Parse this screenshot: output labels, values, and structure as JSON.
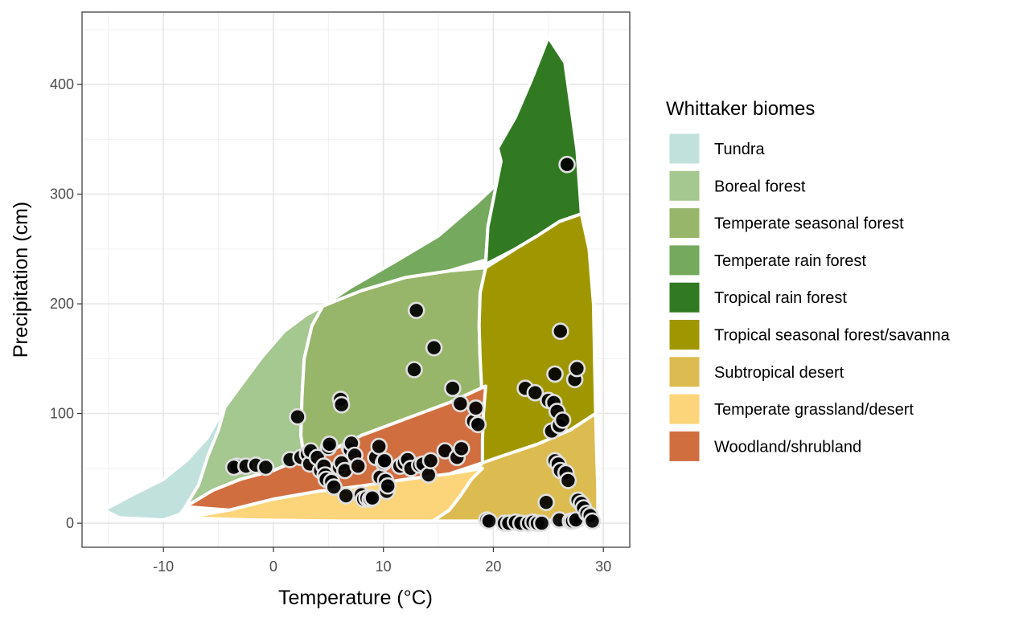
{
  "chart_data": {
    "type": "scatter",
    "xlabel": "Temperature (°C)",
    "ylabel": "Precipitation (cm)",
    "xlim": [
      -17.4,
      32.4
    ],
    "ylim": [
      -21.9,
      466
    ],
    "x_ticks": [
      -10,
      0,
      10,
      20,
      30
    ],
    "y_ticks": [
      0,
      100,
      200,
      300,
      400
    ],
    "x_tick_labels": [
      "-10",
      "0",
      "10",
      "20",
      "30"
    ],
    "y_tick_labels": [
      "0",
      "100",
      "200",
      "300",
      "400"
    ],
    "grid": true,
    "legend": {
      "title": "Whittaker biomes",
      "position": "right"
    },
    "biomes": [
      {
        "name": "Tundra",
        "color": "#C1E1DD",
        "polygon": [
          [
            -15.4,
            12
          ],
          [
            -13,
            25
          ],
          [
            -10,
            40
          ],
          [
            -7.8,
            58
          ],
          [
            -6,
            78
          ],
          [
            -4.4,
            106
          ],
          [
            -4.8,
            80
          ],
          [
            -5.6,
            60
          ],
          [
            -6.5,
            40
          ],
          [
            -7.6,
            20
          ],
          [
            -8.5,
            8
          ],
          [
            -10,
            3
          ],
          [
            -14,
            5
          ]
        ]
      },
      {
        "name": "Boreal forest",
        "color": "#A5C790",
        "polygon": [
          [
            -4.4,
            106
          ],
          [
            -3,
            125
          ],
          [
            -1,
            152
          ],
          [
            1,
            175
          ],
          [
            3,
            190
          ],
          [
            4.5,
            198
          ],
          [
            3.5,
            180
          ],
          [
            2.8,
            150
          ],
          [
            2.6,
            115
          ],
          [
            2.5,
            80
          ],
          [
            2.8,
            60
          ],
          [
            0,
            48
          ],
          [
            -3,
            40
          ],
          [
            -5.5,
            30
          ],
          [
            -8,
            15
          ],
          [
            -6.8,
            35
          ],
          [
            -6,
            60
          ],
          [
            -5,
            85
          ]
        ]
      },
      {
        "name": "Temperate seasonal forest",
        "color": "#97B669",
        "polygon": [
          [
            4.5,
            198
          ],
          [
            8,
            212
          ],
          [
            12,
            224
          ],
          [
            16,
            230
          ],
          [
            19.3,
            233
          ],
          [
            18.8,
            210
          ],
          [
            18.7,
            180
          ],
          [
            18.8,
            150
          ],
          [
            19.3,
            125
          ],
          [
            16,
            110
          ],
          [
            12,
            95
          ],
          [
            8,
            80
          ],
          [
            5,
            65
          ],
          [
            2.8,
            60
          ],
          [
            2.5,
            80
          ],
          [
            2.6,
            115
          ],
          [
            2.8,
            150
          ],
          [
            3.5,
            180
          ]
        ]
      },
      {
        "name": "Temperate rain forest",
        "color": "#75A95E",
        "polygon": [
          [
            4.5,
            198
          ],
          [
            7,
            215
          ],
          [
            11,
            238
          ],
          [
            15,
            262
          ],
          [
            18.5,
            292
          ],
          [
            20.4,
            310
          ],
          [
            20.8,
            330
          ],
          [
            20.1,
            300
          ],
          [
            19.5,
            270
          ],
          [
            19.3,
            240
          ],
          [
            16,
            230
          ],
          [
            12,
            224
          ],
          [
            8,
            212
          ]
        ]
      },
      {
        "name": "Tropical rain forest",
        "color": "#317A22",
        "polygon": [
          [
            20.4,
            342
          ],
          [
            22,
            370
          ],
          [
            23.5,
            405
          ],
          [
            25,
            443
          ],
          [
            26.5,
            420
          ],
          [
            27.6,
            340
          ],
          [
            28,
            282
          ],
          [
            26,
            275
          ],
          [
            24,
            262
          ],
          [
            22,
            250
          ],
          [
            19.3,
            236
          ],
          [
            19.5,
            270
          ],
          [
            20.1,
            300
          ],
          [
            20.7,
            330
          ]
        ]
      },
      {
        "name": "Tropical seasonal forest/savanna",
        "color": "#A09700",
        "polygon": [
          [
            19.3,
            233
          ],
          [
            22,
            250
          ],
          [
            24,
            262
          ],
          [
            26,
            275
          ],
          [
            28,
            282
          ],
          [
            28.7,
            250
          ],
          [
            29.1,
            200
          ],
          [
            29.2,
            150
          ],
          [
            29.3,
            100
          ],
          [
            27,
            85
          ],
          [
            24,
            72
          ],
          [
            21,
            62
          ],
          [
            19,
            55
          ],
          [
            18.5,
            80
          ],
          [
            19,
            110
          ],
          [
            18.8,
            150
          ],
          [
            18.7,
            180
          ],
          [
            18.8,
            210
          ]
        ]
      },
      {
        "name": "Subtropical desert",
        "color": "#DCBB50",
        "polygon": [
          [
            19,
            55
          ],
          [
            21,
            62
          ],
          [
            24,
            72
          ],
          [
            27,
            85
          ],
          [
            29.3,
            100
          ],
          [
            29.4,
            60
          ],
          [
            29.5,
            30
          ],
          [
            29.5,
            5
          ],
          [
            24,
            2
          ],
          [
            20,
            2
          ],
          [
            14.5,
            2
          ],
          [
            16,
            12
          ],
          [
            17,
            25
          ],
          [
            18,
            40
          ]
        ]
      },
      {
        "name": "Temperate grassland/desert",
        "color": "#FCD57A",
        "polygon": [
          [
            14.5,
            2
          ],
          [
            6,
            2
          ],
          [
            -2,
            3
          ],
          [
            -8,
            5
          ],
          [
            -4,
            12
          ],
          [
            0,
            22
          ],
          [
            4,
            29
          ],
          [
            8,
            34
          ],
          [
            12,
            40
          ],
          [
            16,
            45
          ],
          [
            19,
            50
          ],
          [
            18,
            40
          ],
          [
            17,
            25
          ],
          [
            16,
            12
          ]
        ]
      },
      {
        "name": "Woodland/shrubland",
        "color": "#D16E3F",
        "polygon": [
          [
            -8,
            15
          ],
          [
            -5.5,
            30
          ],
          [
            -3,
            40
          ],
          [
            0,
            48
          ],
          [
            2.8,
            60
          ],
          [
            5,
            65
          ],
          [
            8,
            80
          ],
          [
            12,
            95
          ],
          [
            16,
            110
          ],
          [
            19.3,
            125
          ],
          [
            19.1,
            100
          ],
          [
            19,
            75
          ],
          [
            19,
            55
          ],
          [
            16,
            45
          ],
          [
            12,
            40
          ],
          [
            8,
            34
          ],
          [
            4,
            29
          ],
          [
            0,
            22
          ],
          [
            -4,
            12
          ]
        ]
      }
    ],
    "points": [
      [
        -3.3,
        52
      ],
      [
        -3.6,
        51
      ],
      [
        -2.5,
        52
      ],
      [
        -1.6,
        53
      ],
      [
        -0.7,
        51
      ],
      [
        1.5,
        58
      ],
      [
        2.2,
        97
      ],
      [
        2.5,
        60
      ],
      [
        3.1,
        63
      ],
      [
        3.3,
        54
      ],
      [
        3.4,
        66
      ],
      [
        4,
        60
      ],
      [
        4.3,
        48
      ],
      [
        4.6,
        52
      ],
      [
        4.7,
        44
      ],
      [
        4.8,
        40
      ],
      [
        5,
        69
      ],
      [
        5.1,
        72
      ],
      [
        5.3,
        38
      ],
      [
        5.5,
        33
      ],
      [
        6,
        51
      ],
      [
        6.2,
        55
      ],
      [
        6.1,
        113
      ],
      [
        6.2,
        108
      ],
      [
        6.5,
        48
      ],
      [
        6.6,
        25
      ],
      [
        6.9,
        69
      ],
      [
        7,
        67
      ],
      [
        7.1,
        73
      ],
      [
        7.4,
        62
      ],
      [
        7.7,
        52
      ],
      [
        8,
        26
      ],
      [
        8.2,
        22
      ],
      [
        8.5,
        23
      ],
      [
        8.8,
        22
      ],
      [
        9,
        23
      ],
      [
        9.3,
        60
      ],
      [
        9.6,
        70
      ],
      [
        9.7,
        42
      ],
      [
        10,
        55
      ],
      [
        10.1,
        57
      ],
      [
        10.2,
        39
      ],
      [
        10.3,
        29
      ],
      [
        10.4,
        34
      ],
      [
        11.5,
        52
      ],
      [
        11.9,
        55
      ],
      [
        12.2,
        58
      ],
      [
        12.5,
        50
      ],
      [
        12.8,
        140
      ],
      [
        13,
        194
      ],
      [
        13.3,
        53
      ],
      [
        13.6,
        54
      ],
      [
        14.1,
        44
      ],
      [
        14.3,
        57
      ],
      [
        14.6,
        160
      ],
      [
        15.6,
        66
      ],
      [
        16.3,
        123
      ],
      [
        16.7,
        60
      ],
      [
        17,
        109
      ],
      [
        17.1,
        68
      ],
      [
        18.2,
        93
      ],
      [
        18.4,
        105
      ],
      [
        18.6,
        90
      ],
      [
        19.4,
        3
      ],
      [
        19.6,
        2
      ],
      [
        21,
        0
      ],
      [
        21.4,
        0
      ],
      [
        22,
        1
      ],
      [
        22.5,
        0
      ],
      [
        22.9,
        123
      ],
      [
        23.2,
        0
      ],
      [
        23.6,
        1
      ],
      [
        23.8,
        119
      ],
      [
        24,
        0
      ],
      [
        24.4,
        0
      ],
      [
        24.8,
        19
      ],
      [
        25,
        112
      ],
      [
        25.3,
        84
      ],
      [
        25.5,
        110
      ],
      [
        25.6,
        136
      ],
      [
        25.6,
        57
      ],
      [
        25.9,
        54
      ],
      [
        25.8,
        102
      ],
      [
        26,
        89
      ],
      [
        26,
        3
      ],
      [
        26.1,
        175
      ],
      [
        26.1,
        48
      ],
      [
        26.3,
        94
      ],
      [
        26.6,
        46
      ],
      [
        26.7,
        327
      ],
      [
        26.8,
        39
      ],
      [
        27,
        2
      ],
      [
        27.2,
        2
      ],
      [
        27.4,
        131
      ],
      [
        27.5,
        3
      ],
      [
        27.6,
        141
      ],
      [
        27.7,
        21
      ],
      [
        28,
        18
      ],
      [
        28.2,
        14
      ],
      [
        28.5,
        9
      ],
      [
        28.8,
        7
      ],
      [
        29,
        2
      ]
    ]
  }
}
